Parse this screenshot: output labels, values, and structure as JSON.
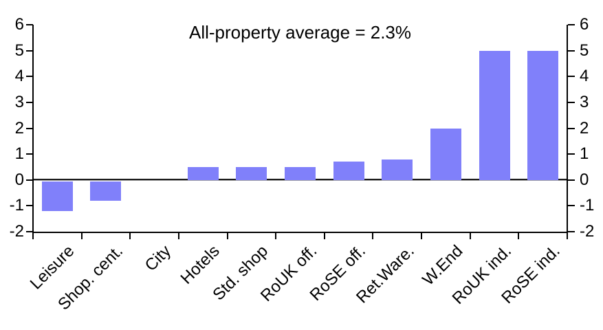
{
  "chart_data": {
    "type": "bar",
    "title": "All-property average = 2.3%",
    "categories": [
      "Leisure",
      "Shop. cent.",
      "City",
      "Hotels",
      "Std. shop",
      "RoUK off.",
      "RoSE off.",
      "Ret.Ware.",
      "W.End",
      "RoUK ind.",
      "RoSE ind."
    ],
    "values": [
      -1.2,
      -0.8,
      0,
      0.5,
      0.5,
      0.5,
      0.7,
      0.8,
      2,
      5,
      5
    ],
    "ylim": [
      -2,
      6
    ],
    "yticks": [
      -2,
      -1,
      0,
      1,
      2,
      3,
      4,
      5,
      6
    ],
    "xlabel": "",
    "ylabel": "",
    "legend": "none",
    "grid": false,
    "dual_y_axis": true,
    "x_label_rotation_deg": 45,
    "bar_color": "#8080fa",
    "axis_color": "#000000",
    "zero_line_color": "#1a1a1a",
    "text_color": "#000000"
  }
}
